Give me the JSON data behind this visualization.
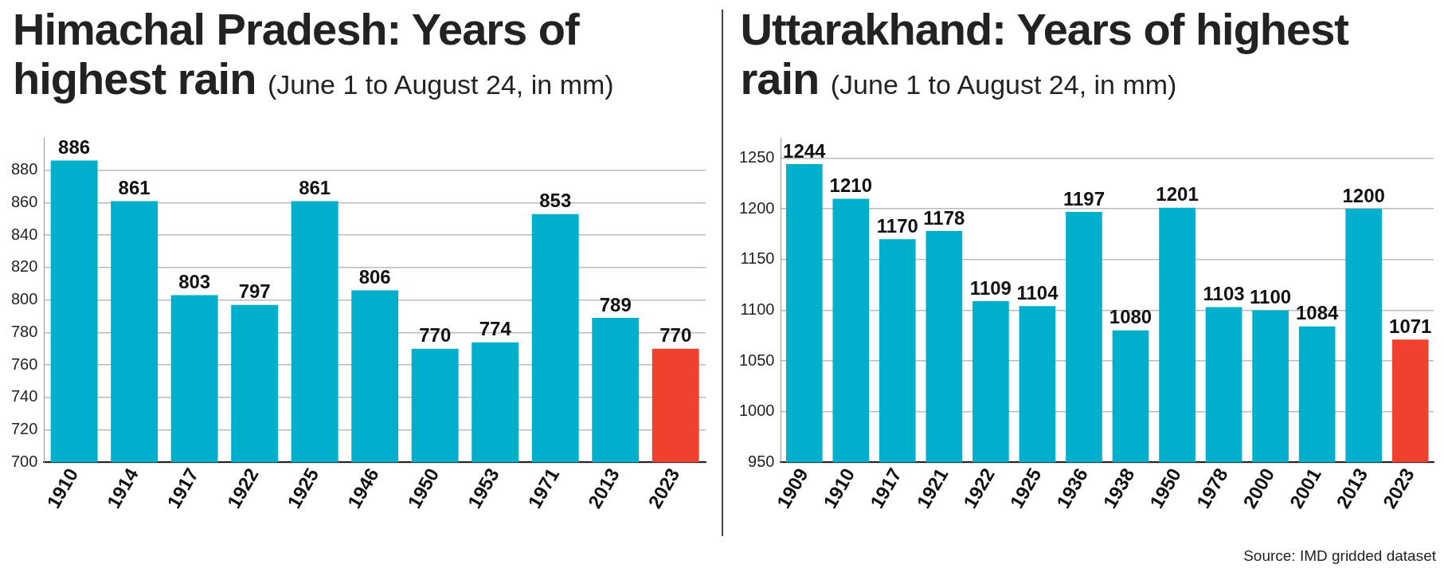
{
  "chart_data": [
    {
      "type": "bar",
      "title": "Himachal Pradesh: Years of highest rain",
      "subtitle": "(June 1 to August 24, in mm)",
      "categories": [
        "1910",
        "1914",
        "1917",
        "1922",
        "1925",
        "1946",
        "1950",
        "1953",
        "1971",
        "2013",
        "2023"
      ],
      "values": [
        886,
        861,
        803,
        797,
        861,
        806,
        770,
        774,
        853,
        789,
        770
      ],
      "colors": [
        "#00afcc",
        "#00afcc",
        "#00afcc",
        "#00afcc",
        "#00afcc",
        "#00afcc",
        "#00afcc",
        "#00afcc",
        "#00afcc",
        "#00afcc",
        "#ef412d"
      ],
      "ylim": [
        700,
        900
      ],
      "yticks": [
        700,
        720,
        740,
        760,
        780,
        800,
        820,
        840,
        860,
        880
      ],
      "grid": "y",
      "data_labels": true
    },
    {
      "type": "bar",
      "title": "Uttarakhand: Years of highest rain",
      "subtitle": "(June 1 to August 24, in mm)",
      "categories": [
        "1909",
        "1910",
        "1917",
        "1921",
        "1922",
        "1925",
        "1936",
        "1938",
        "1950",
        "1978",
        "2000",
        "2001",
        "2013",
        "2023"
      ],
      "values": [
        1244,
        1210,
        1170,
        1178,
        1109,
        1104,
        1197,
        1080,
        1201,
        1103,
        1100,
        1084,
        1200,
        1071
      ],
      "colors": [
        "#00afcc",
        "#00afcc",
        "#00afcc",
        "#00afcc",
        "#00afcc",
        "#00afcc",
        "#00afcc",
        "#00afcc",
        "#00afcc",
        "#00afcc",
        "#00afcc",
        "#00afcc",
        "#00afcc",
        "#ef412d"
      ],
      "ylim": [
        950,
        1270
      ],
      "yticks": [
        950,
        1000,
        1050,
        1100,
        1150,
        1200,
        1250
      ],
      "grid": "y",
      "data_labels": true,
      "annotations": [
        "Source: IMD gridded dataset"
      ]
    }
  ]
}
